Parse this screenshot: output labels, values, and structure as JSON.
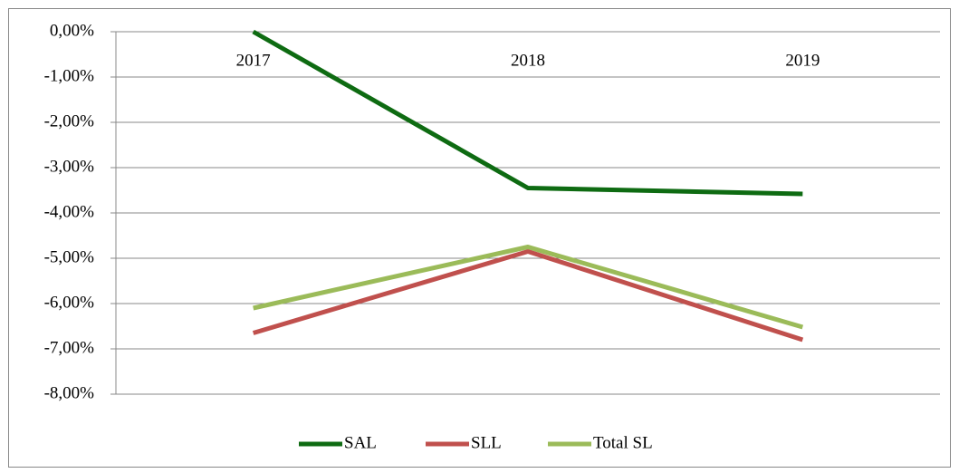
{
  "chart_data": {
    "type": "line",
    "categories": [
      "2017",
      "2018",
      "2019"
    ],
    "series": [
      {
        "name": "SAL",
        "color": "#0e6b12",
        "values": [
          0,
          -3.45,
          -3.58
        ]
      },
      {
        "name": "SLL",
        "color": "#c0504d",
        "values": [
          -6.65,
          -4.85,
          -6.8
        ]
      },
      {
        "name": "Total SL",
        "color": "#9bbb59",
        "values": [
          -6.1,
          -4.75,
          -6.52
        ]
      }
    ],
    "ylim": [
      -8,
      0
    ],
    "yticks": [
      {
        "value": 0,
        "label": "0,00%"
      },
      {
        "value": -1,
        "label": "-1,00%"
      },
      {
        "value": -2,
        "label": "-2,00%"
      },
      {
        "value": -3,
        "label": "-3,00%"
      },
      {
        "value": -4,
        "label": "-4,00%"
      },
      {
        "value": -5,
        "label": "-5,00%"
      },
      {
        "value": -6,
        "label": "-6,00%"
      },
      {
        "value": -7,
        "label": "-7,00%"
      },
      {
        "value": -8,
        "label": "-8,00%"
      }
    ],
    "grid": true,
    "legend": "bottom"
  }
}
